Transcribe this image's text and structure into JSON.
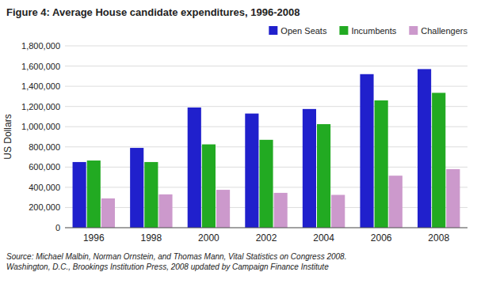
{
  "chart_data": {
    "type": "bar",
    "title": "Figure 4: Average House candidate expenditures, 1996-2008",
    "categories": [
      "1996",
      "1998",
      "2000",
      "2002",
      "2004",
      "2006",
      "2008"
    ],
    "series": [
      {
        "name": "Open Seats",
        "color": "#2020cc",
        "values": [
          650000,
          790000,
          1190000,
          1130000,
          1175000,
          1520000,
          1570000
        ]
      },
      {
        "name": "Incumbents",
        "color": "#22aa22",
        "values": [
          665000,
          650000,
          825000,
          870000,
          1025000,
          1260000,
          1335000
        ]
      },
      {
        "name": "Challengers",
        "color": "#cc99cc",
        "values": [
          290000,
          330000,
          375000,
          345000,
          325000,
          515000,
          580000
        ]
      }
    ],
    "y_label": "US Dollars",
    "ylim": [
      0,
      1800000
    ],
    "yticks": [
      0,
      {
        "value": 200000,
        "label": "200,000"
      },
      {
        "value": 400000,
        "label": "400,000"
      },
      {
        "value": 600000,
        "label": "600,000"
      },
      {
        "value": 800000,
        "label": "800,000"
      },
      {
        "value": 1000000,
        "label": "1,000,000"
      },
      {
        "value": 1200000,
        "label": "1,200,000"
      },
      {
        "value": 1400000,
        "label": "1,400,000"
      },
      {
        "value": 1600000,
        "label": "1,600,000"
      },
      {
        "value": 1800000,
        "label": "1,800,000"
      }
    ],
    "grid": true,
    "legend": "upper right",
    "annotations": [
      "Source: Michael Malbin, Norman Ornstein, and Thomas Mann, Vital Statistics on Congress 2008.\nWashington, D.C., Brookings Institution Press, 2008 updated by Campaign Finance Institute"
    ]
  }
}
